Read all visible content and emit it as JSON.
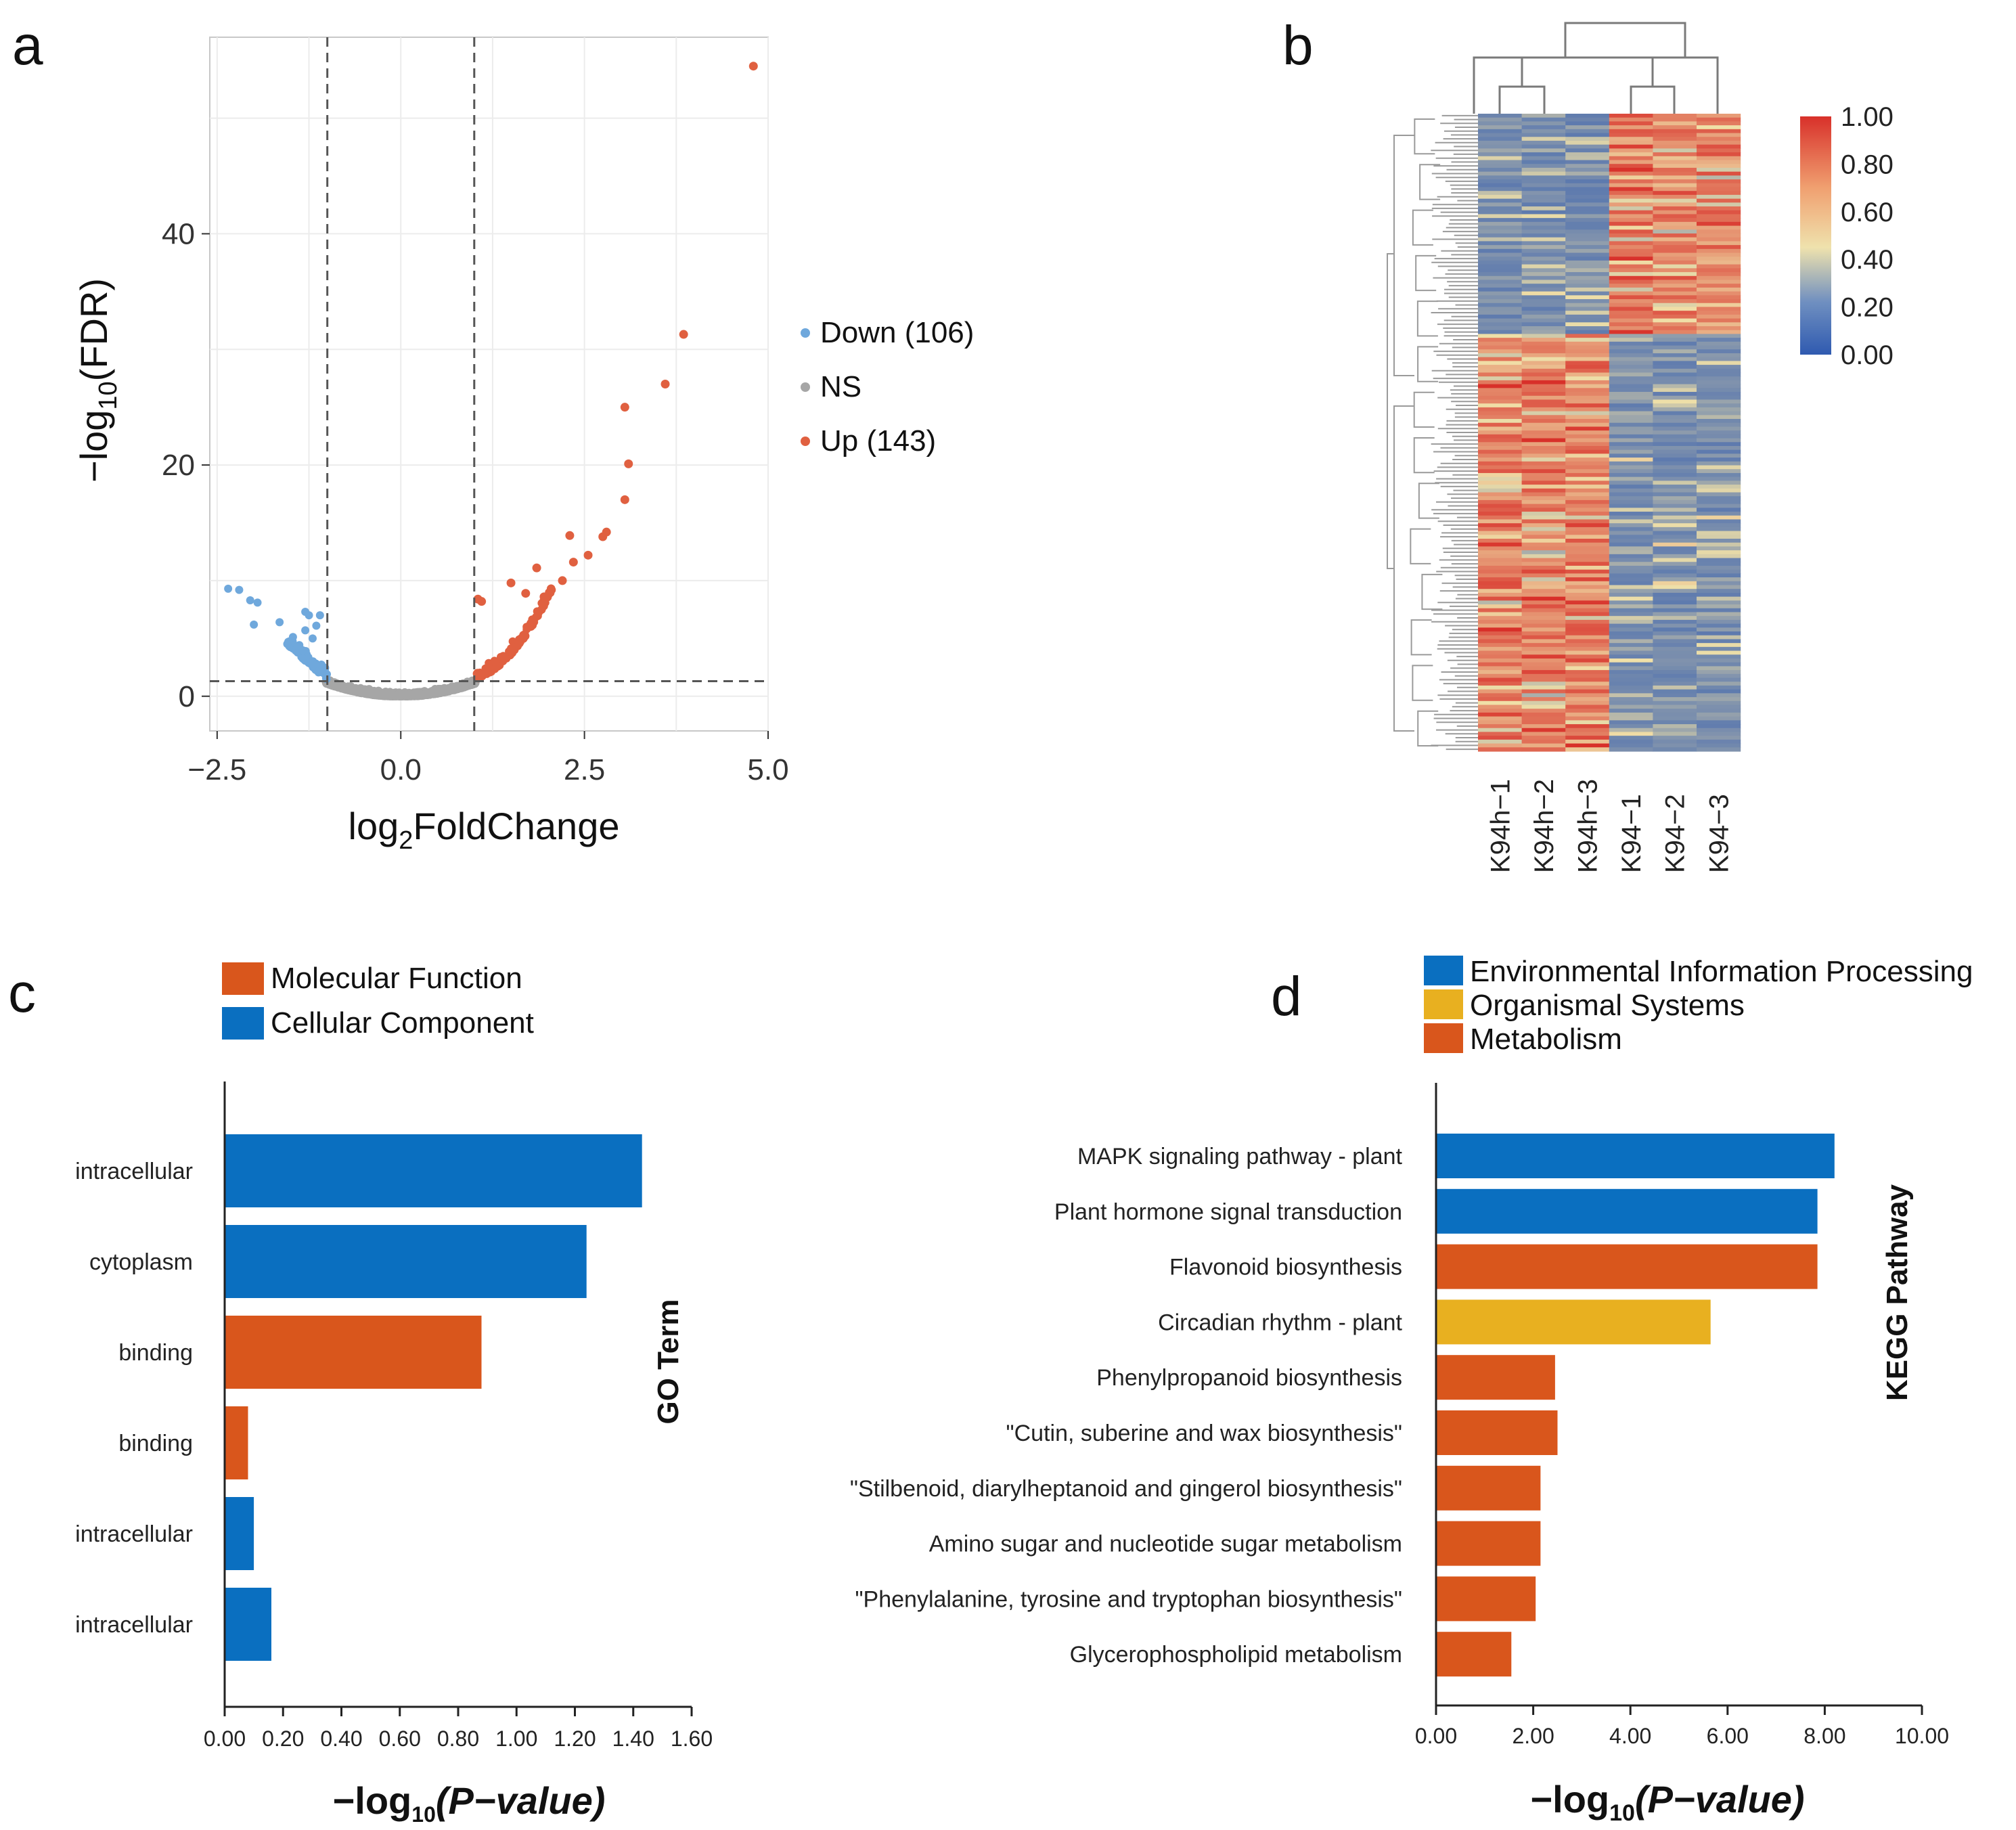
{
  "colors": {
    "down": "#6fa8dc",
    "ns": "#a6a6a6",
    "up": "#e06040",
    "blue": "#0a6fc0",
    "orange": "#d9561c",
    "yellow": "#e8b020",
    "heat_low": "#2f5ab0",
    "heat_mid": "#f0e0a8",
    "heat_high": "#d8302a"
  },
  "panels": {
    "a": "a",
    "b": "b",
    "c": "c",
    "d": "d"
  },
  "chart_data": [
    {
      "id": "volcano",
      "type": "scatter",
      "xlabel_main": "log",
      "xlabel_sub": "2",
      "xlabel_rest": "FoldChange",
      "ylabel_pre": "−log",
      "ylabel_sub": "10",
      "ylabel_rest": "(FDR)",
      "xlim": [
        -2.6,
        5.0
      ],
      "ylim": [
        -3,
        57
      ],
      "x_ticks": [
        -2.5,
        0.0,
        2.5,
        5.0
      ],
      "x_tick_labels": [
        "−2.5",
        "0.0",
        "2.5",
        "5.0"
      ],
      "y_ticks": [
        0,
        20,
        40
      ],
      "y_tick_labels": [
        "0",
        "20",
        "40"
      ],
      "thresholds": {
        "x": [
          -1,
          1
        ],
        "y": 1.3
      },
      "legend": [
        {
          "key": "down",
          "label": "Down (106)"
        },
        {
          "key": "ns",
          "label": "NS"
        },
        {
          "key": "up",
          "label": "Up (143)"
        }
      ],
      "highlight_up": [
        [
          4.8,
          54.5
        ],
        [
          3.85,
          31.3
        ],
        [
          3.6,
          27.0
        ],
        [
          3.05,
          25.0
        ],
        [
          3.1,
          20.1
        ],
        [
          3.05,
          17.0
        ],
        [
          2.8,
          14.2
        ],
        [
          2.75,
          13.8
        ],
        [
          2.55,
          12.2
        ],
        [
          2.35,
          11.6
        ],
        [
          2.3,
          13.9
        ],
        [
          1.85,
          11.1
        ],
        [
          2.2,
          10.0
        ],
        [
          2.05,
          9.2
        ],
        [
          1.5,
          9.8
        ],
        [
          1.7,
          8.9
        ],
        [
          1.95,
          8.6
        ],
        [
          1.05,
          8.4
        ],
        [
          1.1,
          8.2
        ]
      ],
      "highlight_down": [
        [
          -2.35,
          9.3
        ],
        [
          -2.2,
          9.2
        ],
        [
          -2.05,
          8.3
        ],
        [
          -1.95,
          8.1
        ],
        [
          -2.0,
          6.2
        ],
        [
          -1.65,
          6.4
        ],
        [
          -1.3,
          7.3
        ],
        [
          -1.25,
          7.0
        ],
        [
          -1.1,
          7.0
        ],
        [
          -1.15,
          6.1
        ],
        [
          -1.3,
          5.7
        ],
        [
          -1.2,
          5.0
        ]
      ]
    },
    {
      "id": "heatmap",
      "type": "heatmap",
      "columns": [
        "K94h−1",
        "K94h−2",
        "K94h−3",
        "K94−1",
        "K94−2",
        "K94−3"
      ],
      "colorbar_ticks": [
        "1.00",
        "0.80",
        "0.60",
        "0.40",
        "0.20",
        "0.00"
      ],
      "value_range": [
        0,
        1
      ]
    },
    {
      "id": "go",
      "type": "bar",
      "orientation": "horizontal",
      "legend": [
        {
          "key": "orange",
          "label": "Molecular Function"
        },
        {
          "key": "blue",
          "label": "Cellular Component"
        }
      ],
      "categories": [
        "intracellular",
        "cytoplasm",
        "binding",
        "binding",
        "intracellular",
        "intracellular"
      ],
      "values": [
        1.43,
        1.24,
        0.88,
        0.08,
        0.1,
        0.16
      ],
      "groups": [
        "blue",
        "blue",
        "orange",
        "orange",
        "blue",
        "blue"
      ],
      "xlim": [
        0,
        1.6
      ],
      "x_tick_labels": [
        "0.00",
        "0.20",
        "0.40",
        "0.60",
        "0.80",
        "1.00",
        "1.20",
        "1.40",
        "1.60"
      ],
      "xlabel_pre": "−log",
      "xlabel_sub": "10",
      "xlabel_rest": "(P−value)",
      "ylabel": "GO Term"
    },
    {
      "id": "kegg",
      "type": "bar",
      "orientation": "horizontal",
      "legend": [
        {
          "key": "blue",
          "label": "Environmental Information Processing"
        },
        {
          "key": "yellow",
          "label": "Organismal Systems"
        },
        {
          "key": "orange",
          "label": "Metabolism"
        }
      ],
      "categories": [
        "MAPK signaling pathway - plant",
        "Plant hormone signal transduction",
        "Flavonoid biosynthesis",
        "Circadian rhythm - plant",
        "Phenylpropanoid biosynthesis",
        "\"Cutin, suberine and wax biosynthesis\"",
        "\"Stilbenoid, diarylheptanoid and gingerol biosynthesis\"",
        "Amino sugar and nucleotide sugar metabolism",
        "\"Phenylalanine, tyrosine and tryptophan biosynthesis\"",
        "Glycerophospholipid metabolism"
      ],
      "values": [
        8.2,
        7.85,
        7.85,
        5.65,
        2.45,
        2.5,
        2.15,
        2.15,
        2.05,
        1.55
      ],
      "groups": [
        "blue",
        "blue",
        "orange",
        "yellow",
        "orange",
        "orange",
        "orange",
        "orange",
        "orange",
        "orange"
      ],
      "xlim": [
        0,
        10
      ],
      "x_tick_labels": [
        "0.00",
        "2.00",
        "4.00",
        "6.00",
        "8.00",
        "10.00"
      ],
      "xlabel_pre": "−log",
      "xlabel_sub": "10",
      "xlabel_rest": "(P−value)",
      "ylabel": "KEGG Pathway"
    }
  ]
}
